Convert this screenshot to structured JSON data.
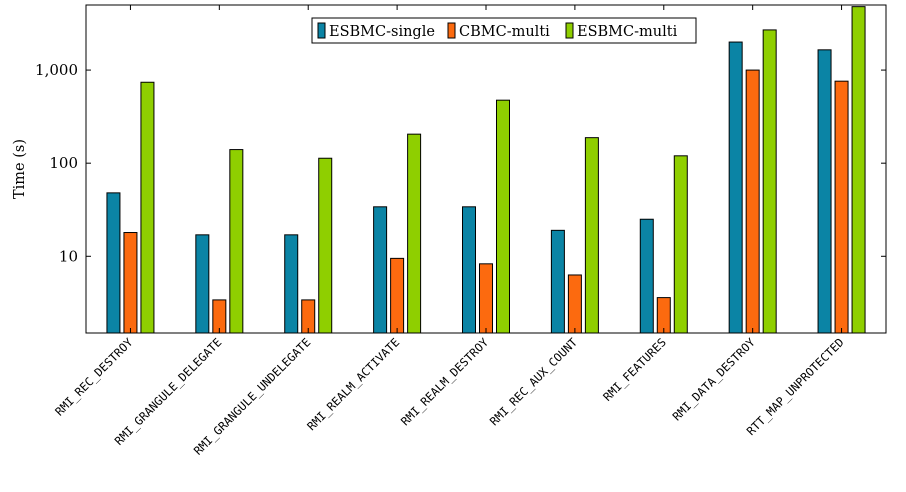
{
  "chart_data": {
    "type": "bar",
    "title": "",
    "xlabel": "",
    "ylabel": "Time (s)",
    "yscale": "log",
    "ylim": [
      1.5,
      5000
    ],
    "yticks": [
      10,
      100,
      1000
    ],
    "ytick_labels": [
      "10",
      "100",
      "1,000"
    ],
    "grid": false,
    "legend_position": "top-center",
    "categories": [
      "RMI_REC_DESTROY",
      "RMI_GRANGULE_DELEGATE",
      "RMI_GRANGULE_UNDELEGATE",
      "RMI_REALM_ACTIVATE",
      "RMI_REALM_DESTROY",
      "RMI_REC_AUX_COUNT",
      "RMI_FEATURES",
      "RMI_DATA_DESTROY",
      "RTT_MAP_UNPROTECTED"
    ],
    "series": [
      {
        "name": "ESBMC-single",
        "color": "#0b84a5",
        "values": [
          48,
          17,
          17,
          34,
          34,
          19,
          25,
          2000,
          1650
        ]
      },
      {
        "name": "CBMC-multi",
        "color": "#fc6a0f",
        "values": [
          18,
          3.4,
          3.4,
          9.5,
          8.3,
          6.3,
          3.6,
          1000,
          760
        ]
      },
      {
        "name": "ESBMC-multi",
        "color": "#8fcf00",
        "values": [
          740,
          140,
          113,
          205,
          475,
          188,
          120,
          2700,
          4800
        ]
      }
    ]
  }
}
